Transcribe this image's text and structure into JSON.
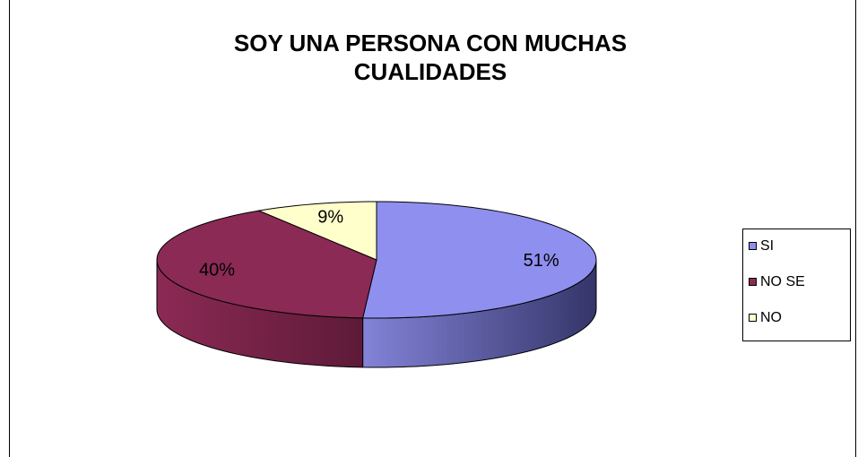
{
  "chart_data": {
    "type": "pie",
    "title": "SOY UNA PERSONA CON MUCHAS CUALIDADES",
    "categories": [
      "SI",
      "NO SE",
      "NO"
    ],
    "values": [
      51,
      40,
      9
    ],
    "value_labels": [
      "51%",
      "40%",
      "9%"
    ],
    "colors": [
      "#8f8fef",
      "#8b2a55",
      "#ffffcc"
    ],
    "legend": "right"
  }
}
